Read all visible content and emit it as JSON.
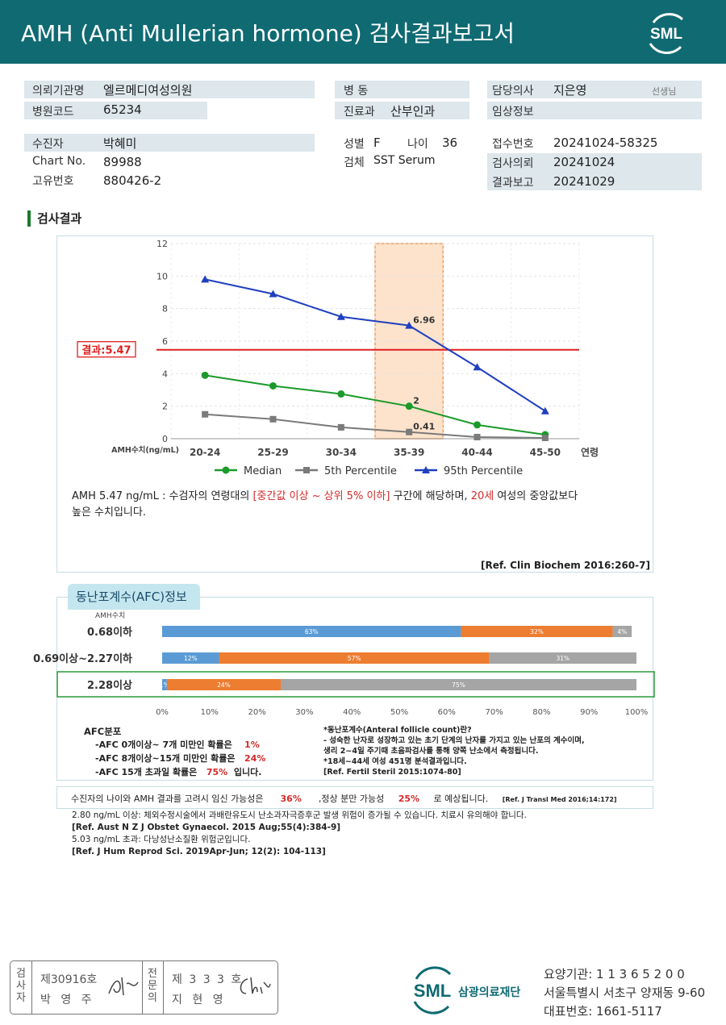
{
  "header": {
    "title": "AMH (Anti Mullerian hormone) 검사결과보고서",
    "logo_text": "SML"
  },
  "info": {
    "institution_label": "의뢰기관명",
    "institution": "엘르메디여성의원",
    "code_label": "병원코드",
    "code": "65234",
    "ward_label": "병  동",
    "ward": "",
    "dept_label": "진료과",
    "dept": "산부인과",
    "doctor_label": "담당의사",
    "doctor": "지은영",
    "doctor_suffix": "선생님",
    "clinical_label": "임상정보",
    "clinical": "",
    "patient_label": "수진자",
    "patient": "박혜미",
    "chart_label": "Chart No.",
    "chart_no": "89988",
    "id_label": "고유번호",
    "id_no": "880426-2",
    "sex_label": "성별",
    "sex": "F",
    "age_label": "나이",
    "age": "36",
    "specimen_label": "검체",
    "specimen": "SST Serum",
    "receipt_label": "접수번호",
    "receipt": "20241024-58325",
    "request_label": "검사의뢰",
    "request_date": "20241024",
    "report_label": "결과보고",
    "report_date": "20241029"
  },
  "section_title": "검사결과",
  "chart_data": {
    "type": "line",
    "categories": [
      "20-24",
      "25-29",
      "30-34",
      "35-39",
      "40-44",
      "45-50"
    ],
    "series": [
      {
        "name": "Median",
        "values": [
          3.9,
          3.25,
          2.75,
          2.0,
          0.85,
          0.25
        ],
        "color": "#1b9a2a",
        "marker": "circle"
      },
      {
        "name": "5th Percentile",
        "values": [
          1.5,
          1.2,
          0.7,
          0.41,
          0.1,
          0.05
        ],
        "color": "#7a7a7a",
        "marker": "square"
      },
      {
        "name": "95th Percentile",
        "values": [
          9.8,
          8.9,
          7.5,
          6.96,
          4.4,
          1.7
        ],
        "color": "#1f3fbf",
        "marker": "triangle"
      }
    ],
    "point_labels": [
      {
        "series": 2,
        "index": 3,
        "text": "6.96"
      },
      {
        "series": 0,
        "index": 3,
        "text": "2"
      },
      {
        "series": 1,
        "index": 3,
        "text": "0.41"
      }
    ],
    "ylim": [
      0,
      12
    ],
    "yticks": [
      "0",
      "2",
      "4",
      "6",
      "8",
      "10",
      "12"
    ],
    "ylabel": "AMH수치(ng/mL)",
    "xlabel": "연령",
    "highlight_category": "35-39",
    "result_value": 5.47,
    "result_label": "결과:5.47",
    "legend_position": "bottom"
  },
  "summary": {
    "p1": "AMH  5.47 ng/mL : 수검자의 연령대의 ",
    "p2": "[중간값 이상 ~ 상위 5% 이하]",
    "p3": " 구간에 해당하며, ",
    "p4": "20세",
    "p5": " 여성의 중앙값보다",
    "p6": "높은 수치입니다."
  },
  "ref1": "[Ref. Clin Biochem 2016:260-7]",
  "afc": {
    "tab_title": "동난포계수(AFC)정보",
    "header_label": "AMH수치",
    "rows": [
      {
        "label": "0.68이하",
        "values": [
          63,
          32,
          4
        ],
        "texts": [
          "63%",
          "32%",
          "4%"
        ]
      },
      {
        "label": "0.69이상~2.27이하",
        "values": [
          12,
          57,
          31
        ],
        "texts": [
          "12%",
          "57%",
          "31%"
        ]
      },
      {
        "label": "2.28이상",
        "values": [
          1,
          24,
          75
        ],
        "texts": [
          "1%",
          "24%",
          "75%"
        ],
        "highlight": true
      }
    ],
    "segment_colors": [
      "#5b9bd5",
      "#ed7d31",
      "#a5a5a5"
    ],
    "xticks": [
      "0%",
      "10%",
      "20%",
      "30%",
      "40%",
      "50%",
      "60%",
      "70%",
      "80%",
      "90%",
      "100%"
    ],
    "dist_title": "AFC분포",
    "dist1_text": "-AFC  0개이상~ 7개 미만인 확률은",
    "dist1_val": "1%",
    "dist2_text": "-AFC  8개이상~15개 미만인 확률은",
    "dist2_val": "24%",
    "dist3_text": "-AFC  15개 초과일 확률은",
    "dist3_val": "75%",
    "dist3_suffix": "입니다.",
    "def_title": "*동난포계수(Anteral follicle count)란?",
    "def1": "- 성숙한 난자로 성장하고 있는 초기 단계의 난자를 가지고 있는 난포의 계수이며,",
    "def2": "  생리 2~4일 주기때 초음파검사를 통해 양쪽 난소에서 측정됩니다.",
    "def3": "*18세~44세 여성 451명 분석결과입니다.",
    "def4": "[Ref. Fertil Steril 2015:1074-80]"
  },
  "probability": {
    "p1": "수진자의 나이와 AMH 결과를 고려시 임신 가능성은",
    "v1": "36%",
    "p2": ",정상 분만 가능성",
    "v2": "25%",
    "p3": "로 예상됩니다.",
    "ref": "[Ref. J Transl Med 2016;14:172]"
  },
  "notes": {
    "n1": "2.80  ng/mL  이상: 체외수정시술에서 과배란유도시 난소과자극증후군 발생 위험이 증가될 수 있습니다. 치료시 유의해야 합니다.",
    "n2": "[Ref. Aust N Z J Obstet Gynaecol. 2015 Aug;55(4):384-9]",
    "n3": "5.03  ng/mL  초과: 다낭성난소질환 위험군입니다.",
    "n4": "[Ref. J Hum Reprod Sci. 2019Apr-Jun; 12(2): 104-113]"
  },
  "footer": {
    "examiner_label": [
      "검",
      "사",
      "자"
    ],
    "examiner_no": "제30916호",
    "examiner_name": "박 영 주",
    "specialist_label": [
      "전",
      "문",
      "의"
    ],
    "specialist_no": "제 3 3 3 호",
    "specialist_name": "지 현 영",
    "org_logo": "SML",
    "org_name": "삼광의료재단",
    "code_line": "요양기관: 1 1 3 6 5 2 0 0",
    "address": "서울특별시 서초구 양재동 9-60",
    "phone": "대표번호: 1661-5117"
  }
}
